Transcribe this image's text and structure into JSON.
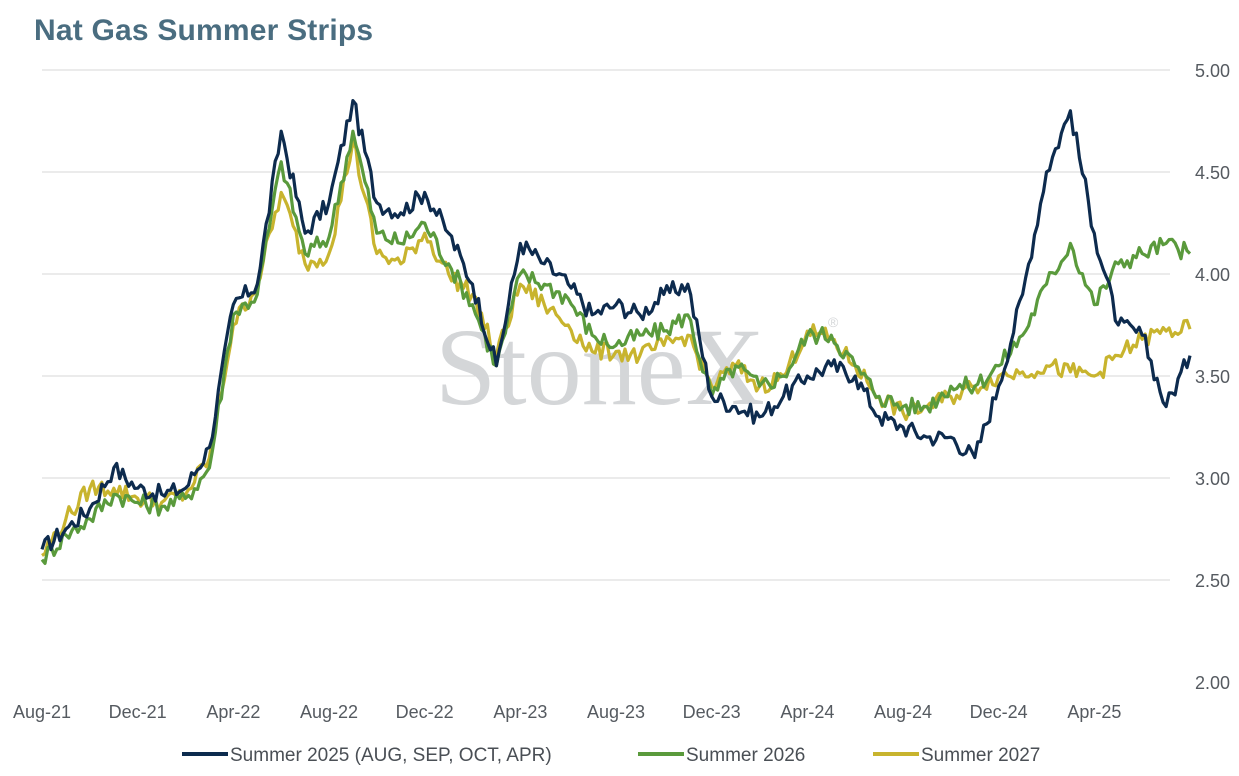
{
  "chart_data": {
    "type": "line",
    "title": "Nat Gas Summer Strips",
    "xlabel": "",
    "ylabel": "",
    "ylim": [
      2.0,
      5.0
    ],
    "y_ticks": [
      "2.00",
      "2.50",
      "3.00",
      "3.50",
      "4.00",
      "4.50",
      "5.00"
    ],
    "x_ticks": [
      "Aug-21",
      "Dec-21",
      "Apr-22",
      "Aug-22",
      "Dec-22",
      "Apr-23",
      "Aug-23",
      "Dec-23",
      "Apr-24",
      "Aug-24",
      "Dec-24",
      "Apr-25"
    ],
    "grid": true,
    "legend_position": "bottom",
    "watermark": "StoneX",
    "series": [
      {
        "name": "Summer 2025 (AUG, SEP, OCT, APR)",
        "color": "#0d2b4e",
        "points": [
          [
            "2021-08",
            2.65
          ],
          [
            "2021-09",
            2.75
          ],
          [
            "2021-10",
            2.85
          ],
          [
            "2021-11",
            3.05
          ],
          [
            "2021-12",
            2.95
          ],
          [
            "2022-01",
            2.92
          ],
          [
            "2022-02",
            2.95
          ],
          [
            "2022-03",
            3.15
          ],
          [
            "2022-04",
            3.85
          ],
          [
            "2022-05",
            3.95
          ],
          [
            "2022-06",
            4.7
          ],
          [
            "2022-07",
            4.2
          ],
          [
            "2022-08",
            4.35
          ],
          [
            "2022-09",
            4.85
          ],
          [
            "2022-10",
            4.35
          ],
          [
            "2022-11",
            4.3
          ],
          [
            "2022-12",
            4.4
          ],
          [
            "2023-01",
            4.2
          ],
          [
            "2023-02",
            3.95
          ],
          [
            "2023-03",
            3.55
          ],
          [
            "2023-04",
            4.15
          ],
          [
            "2023-05",
            4.05
          ],
          [
            "2023-06",
            3.95
          ],
          [
            "2023-07",
            3.8
          ],
          [
            "2023-08",
            3.85
          ],
          [
            "2023-09",
            3.8
          ],
          [
            "2023-10",
            3.9
          ],
          [
            "2023-11",
            3.95
          ],
          [
            "2023-12",
            3.4
          ],
          [
            "2024-01",
            3.35
          ],
          [
            "2024-02",
            3.3
          ],
          [
            "2024-03",
            3.4
          ],
          [
            "2024-04",
            3.5
          ],
          [
            "2024-05",
            3.55
          ],
          [
            "2024-06",
            3.5
          ],
          [
            "2024-07",
            3.3
          ],
          [
            "2024-08",
            3.25
          ],
          [
            "2024-09",
            3.2
          ],
          [
            "2024-10",
            3.2
          ],
          [
            "2024-11",
            3.1
          ],
          [
            "2024-12",
            3.45
          ],
          [
            "2025-01",
            3.9
          ],
          [
            "2025-02",
            4.5
          ],
          [
            "2025-03",
            4.8
          ],
          [
            "2025-04",
            4.2
          ],
          [
            "2025-05",
            3.75
          ],
          [
            "2025-06",
            3.7
          ],
          [
            "2025-07",
            3.35
          ],
          [
            "2025-08",
            3.6
          ]
        ]
      },
      {
        "name": "Summer 2026",
        "color": "#5a9a3c",
        "points": [
          [
            "2021-08",
            2.6
          ],
          [
            "2021-09",
            2.72
          ],
          [
            "2021-10",
            2.8
          ],
          [
            "2021-11",
            2.92
          ],
          [
            "2021-12",
            2.88
          ],
          [
            "2022-01",
            2.86
          ],
          [
            "2022-02",
            2.9
          ],
          [
            "2022-03",
            3.05
          ],
          [
            "2022-04",
            3.8
          ],
          [
            "2022-05",
            3.9
          ],
          [
            "2022-06",
            4.55
          ],
          [
            "2022-07",
            4.1
          ],
          [
            "2022-08",
            4.18
          ],
          [
            "2022-09",
            4.7
          ],
          [
            "2022-10",
            4.2
          ],
          [
            "2022-11",
            4.15
          ],
          [
            "2022-12",
            4.25
          ],
          [
            "2023-01",
            4.05
          ],
          [
            "2023-02",
            3.85
          ],
          [
            "2023-03",
            3.55
          ],
          [
            "2023-04",
            4.0
          ],
          [
            "2023-05",
            3.95
          ],
          [
            "2023-06",
            3.88
          ],
          [
            "2023-07",
            3.7
          ],
          [
            "2023-08",
            3.65
          ],
          [
            "2023-09",
            3.7
          ],
          [
            "2023-10",
            3.72
          ],
          [
            "2023-11",
            3.8
          ],
          [
            "2023-12",
            3.4
          ],
          [
            "2024-01",
            3.55
          ],
          [
            "2024-02",
            3.45
          ],
          [
            "2024-03",
            3.5
          ],
          [
            "2024-04",
            3.7
          ],
          [
            "2024-05",
            3.7
          ],
          [
            "2024-06",
            3.55
          ],
          [
            "2024-07",
            3.4
          ],
          [
            "2024-08",
            3.35
          ],
          [
            "2024-09",
            3.35
          ],
          [
            "2024-10",
            3.45
          ],
          [
            "2024-11",
            3.45
          ],
          [
            "2024-12",
            3.55
          ],
          [
            "2025-01",
            3.7
          ],
          [
            "2025-02",
            3.95
          ],
          [
            "2025-03",
            4.15
          ],
          [
            "2025-04",
            3.85
          ],
          [
            "2025-05",
            4.05
          ],
          [
            "2025-06",
            4.1
          ],
          [
            "2025-07",
            4.15
          ],
          [
            "2025-08",
            4.1
          ]
        ]
      },
      {
        "name": "Summer 2027",
        "color": "#c8b42e",
        "points": [
          [
            "2021-08",
            2.62
          ],
          [
            "2021-09",
            2.8
          ],
          [
            "2021-10",
            2.95
          ],
          [
            "2021-11",
            2.95
          ],
          [
            "2021-12",
            2.9
          ],
          [
            "2022-01",
            2.88
          ],
          [
            "2022-02",
            2.92
          ],
          [
            "2022-03",
            3.1
          ],
          [
            "2022-04",
            3.75
          ],
          [
            "2022-05",
            3.95
          ],
          [
            "2022-06",
            4.4
          ],
          [
            "2022-07",
            4.05
          ],
          [
            "2022-08",
            4.1
          ],
          [
            "2022-09",
            4.65
          ],
          [
            "2022-10",
            4.1
          ],
          [
            "2022-11",
            4.05
          ],
          [
            "2022-12",
            4.2
          ],
          [
            "2023-01",
            4.0
          ],
          [
            "2023-02",
            3.9
          ],
          [
            "2023-03",
            3.6
          ],
          [
            "2023-04",
            3.95
          ],
          [
            "2023-05",
            3.85
          ],
          [
            "2023-06",
            3.75
          ],
          [
            "2023-07",
            3.62
          ],
          [
            "2023-08",
            3.62
          ],
          [
            "2023-09",
            3.6
          ],
          [
            "2023-10",
            3.65
          ],
          [
            "2023-11",
            3.7
          ],
          [
            "2023-12",
            3.45
          ],
          [
            "2024-01",
            3.55
          ],
          [
            "2024-02",
            3.45
          ],
          [
            "2024-03",
            3.5
          ],
          [
            "2024-04",
            3.72
          ],
          [
            "2024-05",
            3.68
          ],
          [
            "2024-06",
            3.55
          ],
          [
            "2024-07",
            3.4
          ],
          [
            "2024-08",
            3.32
          ],
          [
            "2024-09",
            3.35
          ],
          [
            "2024-10",
            3.4
          ],
          [
            "2024-11",
            3.45
          ],
          [
            "2024-12",
            3.5
          ],
          [
            "2025-01",
            3.52
          ],
          [
            "2025-02",
            3.55
          ],
          [
            "2025-03",
            3.52
          ],
          [
            "2025-04",
            3.5
          ],
          [
            "2025-05",
            3.6
          ],
          [
            "2025-06",
            3.68
          ],
          [
            "2025-07",
            3.72
          ],
          [
            "2025-08",
            3.73
          ]
        ]
      }
    ]
  }
}
